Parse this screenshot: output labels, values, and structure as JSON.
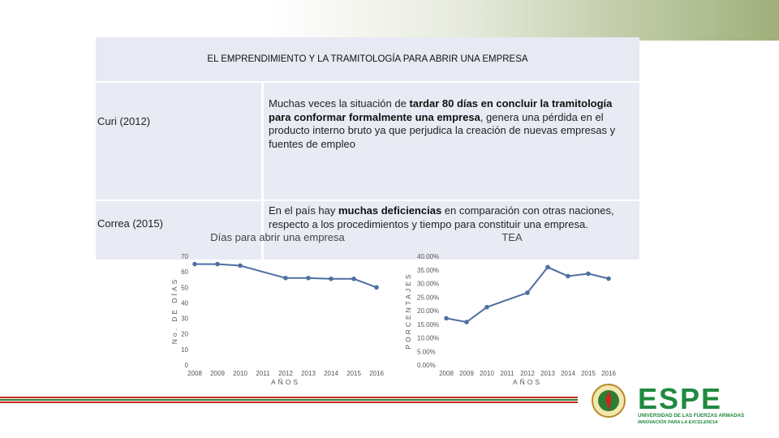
{
  "table": {
    "header": "EL EMPRENDIMIENTO Y LA TRAMITOLOGÍA PARA ABRIR UNA EMPRESA",
    "rows": [
      {
        "author": "Curi (2012)",
        "text_pre": "Muchas veces la situación de ",
        "text_bold": "tardar 80 días en concluir la tramitología para conformar formalmente una empresa",
        "text_post": ", genera una pérdida en el producto interno bruto ya que perjudica la creación de nuevas empresas y fuentes de empleo"
      },
      {
        "author": "Correa (2015)",
        "text_pre": "En el país hay ",
        "text_bold": "muchas deficiencias",
        "text_post": " en comparación con otras naciones, respecto a los procedimientos y tiempo para constituir una empresa."
      }
    ]
  },
  "chart_data": [
    {
      "type": "line",
      "title": "Días para abrir una empresa",
      "xlabel": "AÑOS",
      "ylabel": "No. DE DÍAS",
      "x": [
        "2008",
        "2009",
        "2010",
        "2011",
        "2012",
        "2013",
        "2014",
        "2015",
        "2016"
      ],
      "series": [
        {
          "values": [
            65,
            65,
            64,
            null,
            56,
            56,
            55.5,
            55.5,
            50
          ]
        }
      ],
      "ylim": [
        0,
        70
      ],
      "yticks": [
        "0",
        "10",
        "20",
        "30",
        "40",
        "50",
        "60",
        "70"
      ],
      "color": "#4e6fa0",
      "grid": false,
      "legend": "none"
    },
    {
      "type": "line",
      "title": "TEA",
      "xlabel": "AÑOS",
      "ylabel": "PORCENTAJES",
      "x": [
        "2008",
        "2009",
        "2010",
        "2011",
        "2012",
        "2013",
        "2014",
        "2015",
        "2016"
      ],
      "series": [
        {
          "values": [
            17.2,
            15.8,
            21.3,
            null,
            26.6,
            36.0,
            32.7,
            33.6,
            31.8
          ]
        }
      ],
      "ylim": [
        0,
        40
      ],
      "yticks": [
        "0.00%",
        "5.00%",
        "10.00%",
        "15.00%",
        "20.00%",
        "25.00%",
        "30.00%",
        "35.00%",
        "40.00%"
      ],
      "color": "#4e6fa0",
      "grid": false,
      "legend": "none"
    }
  ],
  "logo": {
    "name": "ESPE",
    "subtitle": "UNIVERSIDAD DE LAS FUERZAS ARMADAS",
    "tagline": "INNOVACIÓN PARA LA EXCELENCIA"
  },
  "colors": {
    "stripe_red": "#c8281e",
    "stripe_green": "#2e7d32",
    "logo_green": "#1f8a3e",
    "line": "#4e6fa0"
  }
}
